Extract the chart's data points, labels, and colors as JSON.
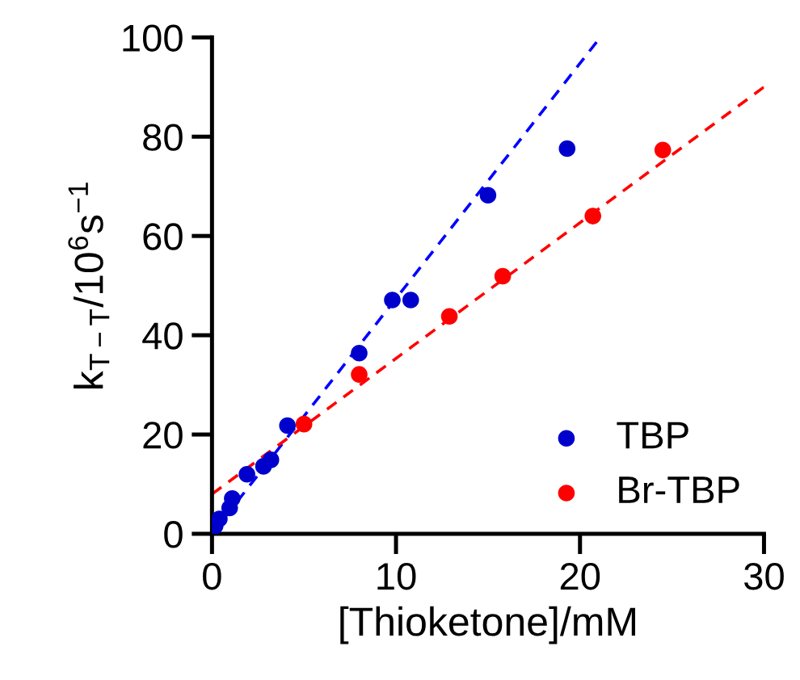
{
  "chart_data": {
    "type": "scatter",
    "xlabel": "[Thioketone]/mM",
    "ylabel": "k$_{T−T}$/10$^{6}$s$^{−1}$",
    "xlim": [
      0,
      30
    ],
    "ylim": [
      0,
      100
    ],
    "xticks": [
      0,
      10,
      20,
      30
    ],
    "yticks": [
      0,
      20,
      40,
      60,
      80,
      100
    ],
    "legend": "bottom right",
    "grid": false,
    "series": [
      {
        "name": "TBP",
        "color": "#0000cc",
        "marker": "circle",
        "x": [
          0.17,
          0.4,
          0.96,
          1.1,
          1.9,
          2.8,
          3.2,
          4.1,
          8.0,
          9.8,
          10.8,
          15.0,
          19.3
        ],
        "values": [
          1.6,
          3,
          5.2,
          7.1,
          12.0,
          13.6,
          14.9,
          21.8,
          36.4,
          47.1,
          47.1,
          68.2,
          77.6
        ]
      },
      {
        "name": "Br-TBP",
        "color": "#ff0000",
        "marker": "circle",
        "x": [
          5.0,
          8.0,
          12.9,
          15.8,
          20.7,
          24.5
        ],
        "values": [
          22.1,
          32.1,
          43.8,
          51.9,
          64.0,
          77.3
        ]
      },
      {
        "type": "line",
        "color": "#0000ff",
        "marker": "none",
        "line_style": "dashed",
        "x": [
          0,
          21.1
        ],
        "values": [
          0,
          100
        ]
      },
      {
        "type": "line",
        "color": "#ff0000",
        "marker": "none",
        "line_style": "dashed",
        "x": [
          0,
          30
        ],
        "values": [
          8,
          90
        ]
      }
    ]
  }
}
